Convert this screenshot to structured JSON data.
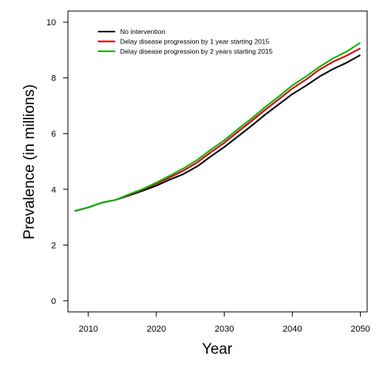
{
  "chart_data": {
    "type": "line",
    "title": "",
    "xlabel": "Year",
    "ylabel": "Prevalence (in millions)",
    "xlim": [
      2007,
      2051
    ],
    "ylim": [
      -0.4,
      10.4
    ],
    "xticks": [
      2010,
      2020,
      2030,
      2040,
      2050
    ],
    "yticks": [
      0,
      2,
      4,
      6,
      8,
      10
    ],
    "grid": false,
    "legend_position": "top-left",
    "x": [
      2008,
      2010,
      2012,
      2014,
      2016,
      2018,
      2020,
      2022,
      2024,
      2026,
      2028,
      2030,
      2032,
      2034,
      2036,
      2038,
      2040,
      2042,
      2044,
      2046,
      2048,
      2050
    ],
    "series": [
      {
        "name": "No intervention",
        "color": "#000000",
        "values": [
          3.22,
          3.35,
          3.52,
          3.62,
          3.78,
          3.95,
          4.13,
          4.35,
          4.55,
          4.82,
          5.18,
          5.52,
          5.9,
          6.28,
          6.68,
          7.05,
          7.42,
          7.72,
          8.05,
          8.32,
          8.55,
          8.82
        ]
      },
      {
        "name": "Delay disease progression by 1 year starting 2015",
        "color": "#cc0000",
        "values": [
          3.22,
          3.35,
          3.52,
          3.62,
          3.8,
          3.99,
          4.2,
          4.43,
          4.67,
          4.96,
          5.33,
          5.67,
          6.07,
          6.45,
          6.85,
          7.23,
          7.62,
          7.94,
          8.3,
          8.58,
          8.8,
          9.06
        ]
      },
      {
        "name": "Delay disease progression by 2 years starting 2015",
        "color": "#00b300",
        "values": [
          3.22,
          3.35,
          3.52,
          3.62,
          3.82,
          4.01,
          4.24,
          4.49,
          4.75,
          5.05,
          5.42,
          5.76,
          6.16,
          6.54,
          6.95,
          7.33,
          7.73,
          8.05,
          8.4,
          8.7,
          8.95,
          9.26
        ]
      }
    ]
  }
}
